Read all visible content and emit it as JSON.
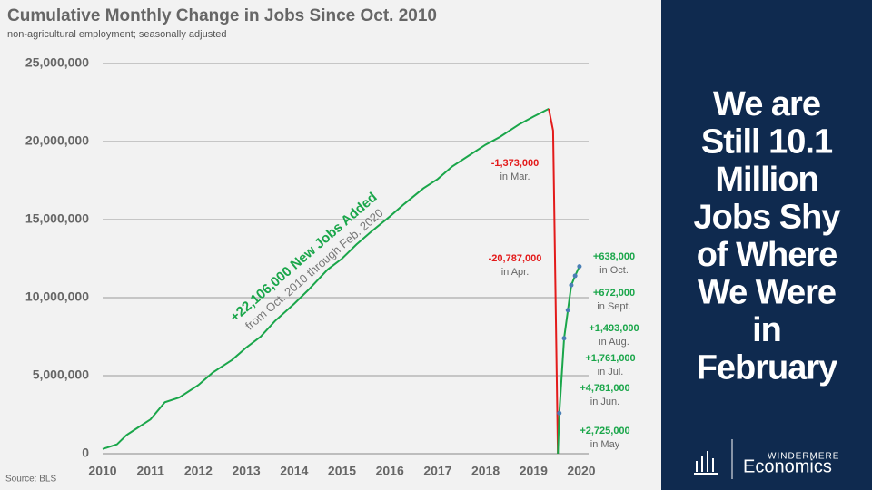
{
  "chart_data": {
    "type": "line",
    "title": "Cumulative Monthly Change in Jobs Since Oct. 2010",
    "subtitle": "non-agricultural employment; seasonally adjusted",
    "source": "Source: BLS",
    "xlim": [
      2010,
      2020.6
    ],
    "xticks": [
      2010,
      2011,
      2012,
      2013,
      2014,
      2015,
      2016,
      2017,
      2018,
      2019,
      2020
    ],
    "ylim": [
      0,
      25000000
    ],
    "yticks": [
      {
        "value": 0,
        "label": "0"
      },
      {
        "value": 5000000,
        "label": "5,000,000"
      },
      {
        "value": 10000000,
        "label": "10,000,000"
      },
      {
        "value": 15000000,
        "label": "15,000,000"
      },
      {
        "value": 20000000,
        "label": "20,000,000"
      },
      {
        "value": 25000000,
        "label": "25,000,000"
      }
    ],
    "grid": true,
    "series": [
      {
        "color": "#1aa64a",
        "x": [
          2010.0,
          2010.3,
          2010.5,
          2010.7,
          2011.0,
          2011.3,
          2011.6,
          2012.0,
          2012.3,
          2012.7,
          2013.0,
          2013.3,
          2013.6,
          2014.0,
          2014.3,
          2014.7,
          2015.0,
          2015.3,
          2015.6,
          2016.0,
          2016.3,
          2016.7,
          2017.0,
          2017.3,
          2017.7,
          2018.0,
          2018.3,
          2018.7,
          2019.0,
          2019.32
        ],
        "values": [
          300000,
          600000,
          1200000,
          1600000,
          2200000,
          3300000,
          3600000,
          4400000,
          5200000,
          6000000,
          6800000,
          7500000,
          8500000,
          9600000,
          10500000,
          11800000,
          12500000,
          13400000,
          14200000,
          15200000,
          16000000,
          17000000,
          17600000,
          18400000,
          19200000,
          19800000,
          20300000,
          21100000,
          21600000,
          22100000
        ]
      },
      {
        "color": "#e31b1b",
        "x": [
          2019.32,
          2019.41,
          2019.51
        ],
        "values": [
          22100000,
          20700000,
          0
        ]
      },
      {
        "color": "#1aa64a",
        "dot_color": "#4a7fb5",
        "x": [
          2019.51,
          2019.54,
          2019.64,
          2019.72,
          2019.79,
          2019.87,
          2019.96
        ],
        "values": [
          0,
          2600000,
          7400000,
          9200000,
          10800000,
          11400000,
          12000000
        ]
      }
    ],
    "main_annotation": {
      "label": "+22,106,000 New Jobs Added",
      "note": "from Oct. 2010 through Feb. 2020"
    },
    "annotations": [
      {
        "label": "-1,373,000",
        "note": "in Mar.",
        "color": "#e31b1b"
      },
      {
        "label": "-20,787,000",
        "note": "in Apr.",
        "color": "#e31b1b"
      },
      {
        "label": "+638,000",
        "note": "in Oct.",
        "color": "#1aa64a"
      },
      {
        "label": "+672,000",
        "note": "in Sept.",
        "color": "#1aa64a"
      },
      {
        "label": "+1,493,000",
        "note": "in Aug.",
        "color": "#1aa64a"
      },
      {
        "label": "+1,761,000",
        "note": "in Jul.",
        "color": "#1aa64a"
      },
      {
        "label": "+4,781,000",
        "note": "in Jun.",
        "color": "#1aa64a"
      },
      {
        "label": "+2,725,000",
        "note": "in May",
        "color": "#1aa64a"
      }
    ]
  },
  "sidebar": {
    "headline": [
      "We are",
      "Still 10.1",
      "Million",
      "Jobs Shy",
      "of Where",
      "We Were",
      "in",
      "February"
    ],
    "brand_top": "WINDERMERE",
    "brand_bottom": "Economics"
  }
}
